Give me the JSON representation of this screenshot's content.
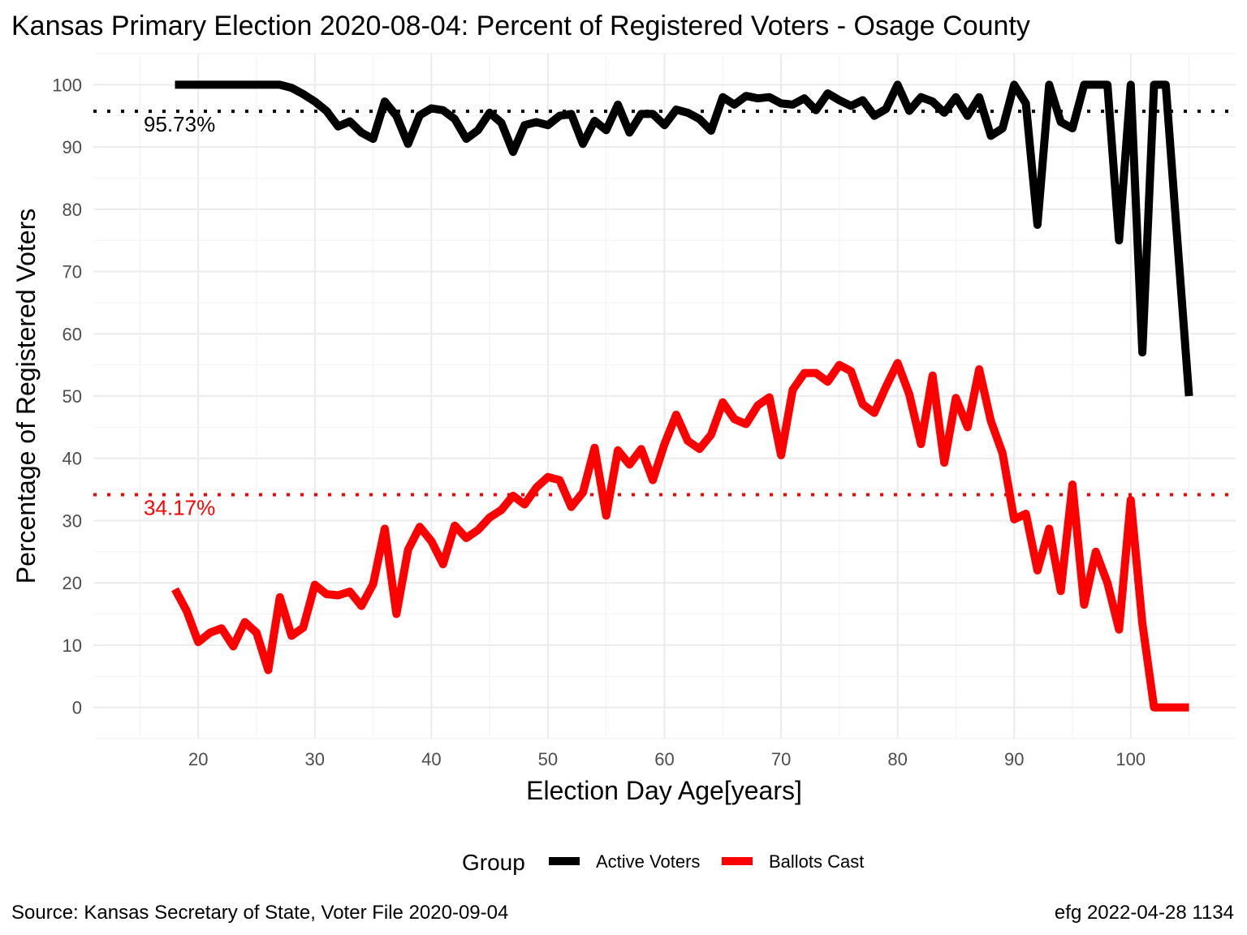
{
  "chart_data": {
    "type": "line",
    "title": "Kansas Primary Election 2020-08-04:  Percent of Registered Voters - Osage County",
    "xlabel": "Election Day Age[years]",
    "ylabel": "Percentage of Registered Voters",
    "xlim": [
      11,
      109
    ],
    "ylim": [
      -5,
      105
    ],
    "x_ticks": [
      20,
      30,
      40,
      50,
      60,
      70,
      80,
      90,
      100
    ],
    "y_ticks": [
      0,
      10,
      20,
      30,
      40,
      50,
      60,
      70,
      80,
      90,
      100
    ],
    "grid": true,
    "legend": {
      "title": "Group",
      "position": "bottom"
    },
    "series": [
      {
        "name": "Active Voters",
        "color": "#000000",
        "x": [
          18,
          19,
          20,
          21,
          22,
          23,
          24,
          25,
          26,
          27,
          28,
          29,
          30,
          31,
          32,
          33,
          34,
          35,
          36,
          37,
          38,
          39,
          40,
          41,
          42,
          43,
          44,
          45,
          46,
          47,
          48,
          49,
          50,
          51,
          52,
          53,
          54,
          55,
          56,
          57,
          58,
          59,
          60,
          61,
          62,
          63,
          64,
          65,
          66,
          67,
          68,
          69,
          70,
          71,
          72,
          73,
          74,
          75,
          76,
          77,
          78,
          79,
          80,
          81,
          82,
          83,
          84,
          85,
          86,
          87,
          88,
          89,
          90,
          91,
          92,
          93,
          94,
          95,
          96,
          97,
          98,
          99,
          100,
          101,
          102,
          103,
          104,
          105
        ],
        "values": [
          100,
          100,
          100,
          100,
          100,
          100,
          100,
          100,
          100,
          100,
          99.5,
          98.5,
          97.3,
          95.8,
          93.3,
          94.1,
          92.3,
          91.3,
          97.3,
          95,
          90.5,
          95.1,
          96.2,
          95.9,
          94.5,
          91.3,
          92.7,
          95.5,
          93.9,
          89.2,
          93.5,
          94,
          93.5,
          95,
          95.3,
          90.5,
          94.2,
          92.7,
          96.8,
          92.3,
          95.3,
          95.3,
          93.5,
          96,
          95.5,
          94.5,
          92.6,
          98,
          96.8,
          98.2,
          97.8,
          98,
          97,
          96.8,
          97.8,
          95.9,
          98.6,
          97.5,
          96.6,
          97.5,
          95,
          96.1,
          100,
          95.8,
          98,
          97.3,
          95.5,
          98,
          95,
          98,
          91.8,
          93,
          100,
          97,
          77.5,
          100,
          94,
          93,
          100,
          100,
          100,
          75,
          100,
          57,
          100,
          100,
          75,
          50
        ]
      },
      {
        "name": "Ballots Cast",
        "color": "#ff0000",
        "x": [
          18,
          19,
          20,
          21,
          22,
          23,
          24,
          25,
          26,
          27,
          28,
          29,
          30,
          31,
          32,
          33,
          34,
          35,
          36,
          37,
          38,
          39,
          40,
          41,
          42,
          43,
          44,
          45,
          46,
          47,
          48,
          49,
          50,
          51,
          52,
          53,
          54,
          55,
          56,
          57,
          58,
          59,
          60,
          61,
          62,
          63,
          64,
          65,
          66,
          67,
          68,
          69,
          70,
          71,
          72,
          73,
          74,
          75,
          76,
          77,
          78,
          79,
          80,
          81,
          82,
          83,
          84,
          85,
          86,
          87,
          88,
          89,
          90,
          91,
          92,
          93,
          94,
          95,
          96,
          97,
          98,
          99,
          100,
          101,
          102,
          103,
          104,
          105
        ],
        "values": [
          19,
          15.5,
          10.5,
          12,
          12.7,
          9.8,
          13.7,
          12,
          6,
          17.7,
          11.5,
          12.8,
          19.7,
          18.2,
          18,
          18.6,
          16.3,
          19.8,
          28.7,
          15,
          25.3,
          29,
          26.7,
          23,
          29.2,
          27.2,
          28.5,
          30.5,
          31.7,
          34,
          32.6,
          35.3,
          37,
          36.5,
          32.2,
          34.5,
          41.7,
          30.8,
          41.3,
          39,
          41.5,
          36.5,
          42.3,
          47,
          42.8,
          41.5,
          43.8,
          49,
          46.3,
          45.5,
          48.5,
          49.8,
          40.5,
          51,
          53.7,
          53.7,
          52.3,
          55,
          54,
          48.7,
          47.3,
          51.5,
          55.3,
          50.3,
          42.3,
          53.3,
          39.3,
          49.7,
          45,
          54.3,
          46,
          40.8,
          30.2,
          31.1,
          22,
          28.7,
          18.7,
          35.8,
          16.5,
          25,
          20,
          12.5,
          33.3,
          13.5,
          0,
          0,
          0,
          0
        ]
      }
    ],
    "reference_lines": [
      {
        "series": "Active Voters",
        "value": 95.73,
        "label": "95.73%",
        "color": "#000000"
      },
      {
        "series": "Ballots Cast",
        "value": 34.17,
        "label": "34.17%",
        "color": "#ff0000"
      }
    ],
    "caption_left": "Source:  Kansas Secretary of State, Voter File  2020-09-04",
    "caption_right": "efg 2022-04-28 1134"
  }
}
